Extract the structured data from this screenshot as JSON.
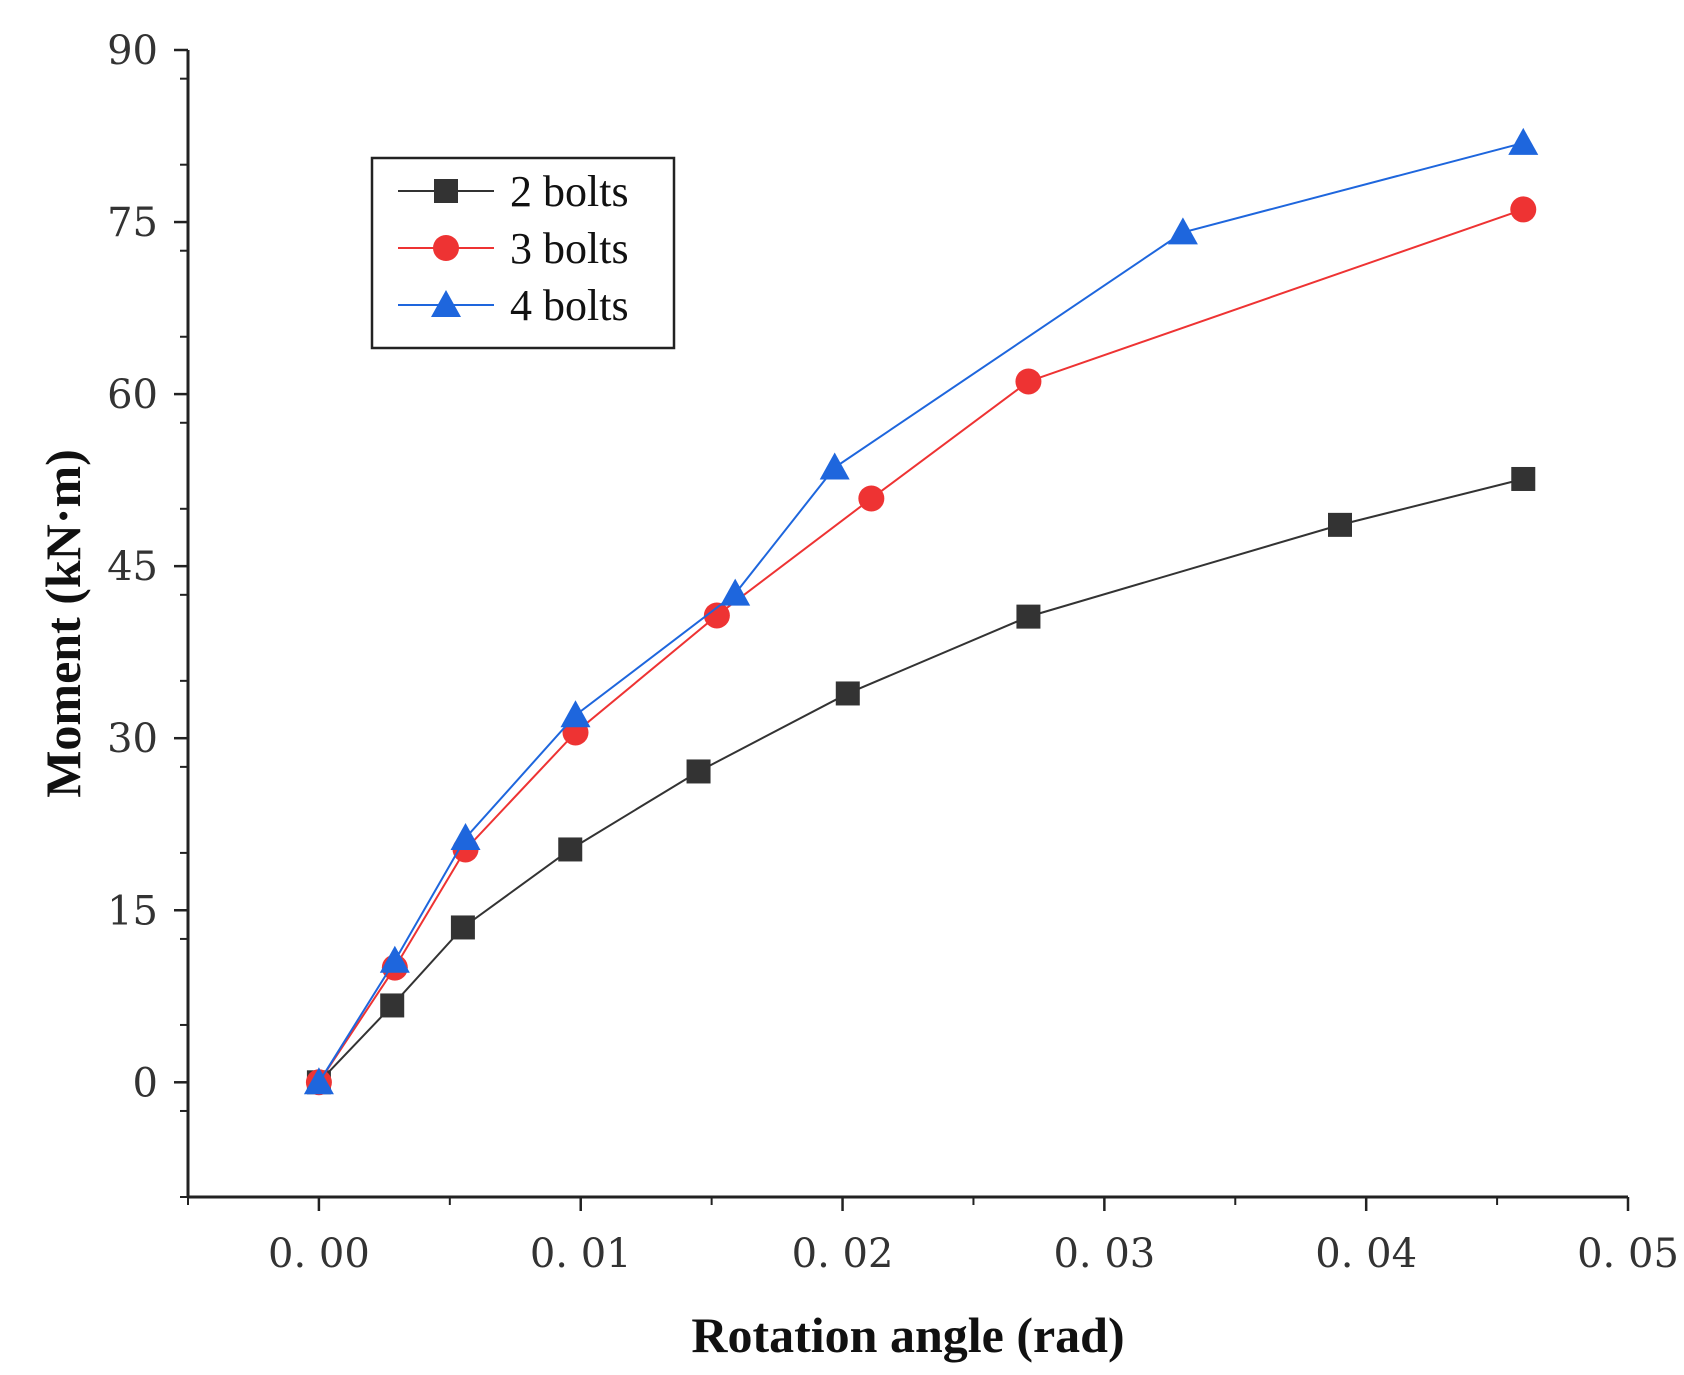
{
  "chart_data": {
    "type": "line",
    "title": "",
    "xlabel": "Rotation angle (rad)",
    "ylabel": "Moment (kN·m)",
    "xlim": [
      -0.005,
      0.05
    ],
    "ylim": [
      -10,
      90
    ],
    "xticks": [
      0.0,
      0.01,
      0.02,
      0.03,
      0.04,
      0.05
    ],
    "xtick_labels": [
      "0. 00",
      "0. 01",
      "0. 02",
      "0. 03",
      "0. 04",
      "0. 05"
    ],
    "yticks": [
      0,
      15,
      30,
      45,
      60,
      75,
      90
    ],
    "ytick_labels": [
      "0",
      "15",
      "30",
      "45",
      "60",
      "75",
      "90"
    ],
    "grid": false,
    "legend_position": "top-left",
    "series": [
      {
        "name": "2 bolts",
        "color": "#333333",
        "marker": "square",
        "x": [
          0.0,
          0.0028,
          0.0055,
          0.0096,
          0.0145,
          0.0202,
          0.0271,
          0.039,
          0.046
        ],
        "y": [
          0.0,
          6.7,
          13.5,
          20.3,
          27.1,
          33.9,
          40.6,
          48.6,
          52.6
        ]
      },
      {
        "name": "3 bolts",
        "color": "#ee3333",
        "marker": "circle",
        "x": [
          0.0,
          0.0029,
          0.0056,
          0.0098,
          0.0152,
          0.0211,
          0.0271,
          0.046
        ],
        "y": [
          0.0,
          10.0,
          20.3,
          30.5,
          40.7,
          50.9,
          61.1,
          76.1
        ]
      },
      {
        "name": "4 bolts",
        "color": "#1e66dd",
        "marker": "triangle",
        "x": [
          0.0,
          0.0029,
          0.0056,
          0.0098,
          0.0159,
          0.0197,
          0.033,
          0.046
        ],
        "y": [
          0.0,
          10.6,
          21.3,
          32.0,
          42.6,
          53.6,
          74.1,
          81.9
        ]
      }
    ]
  }
}
